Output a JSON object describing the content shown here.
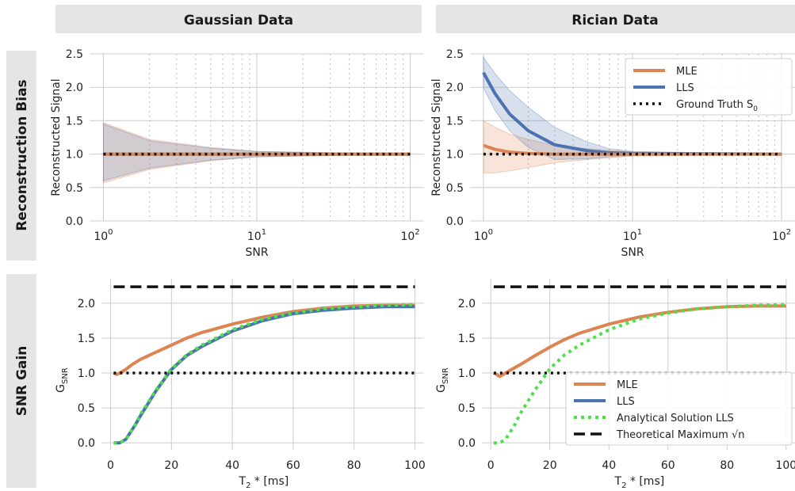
{
  "headers": {
    "columns": [
      "Gaussian Data",
      "Rician Data"
    ],
    "rows": [
      "Reconstruction Bias",
      "SNR Gain"
    ]
  },
  "colors": {
    "mle": "#dd8452",
    "lls": "#4c72b0",
    "analytical": "#4ee04a",
    "truth": "#111111",
    "header_bg": "#e5e5e5",
    "grid": "#cccccc"
  },
  "chart_data": [
    {
      "id": "bias-gaussian",
      "type": "line",
      "xscale": "log",
      "xlim": [
        1,
        100
      ],
      "ylim": [
        0,
        2.5
      ],
      "xticks": [
        "10^0",
        "10^1",
        "10^2"
      ],
      "yticks": [
        "0.0",
        "0.5",
        "1.0",
        "1.5",
        "2.0",
        "2.5"
      ],
      "xlabel": "SNR",
      "ylabel": "Reconstructed Signal",
      "grid": true,
      "series": [
        {
          "name": "MLE",
          "x": [
            1,
            2,
            5,
            10,
            100
          ],
          "y": [
            1.0,
            1.0,
            1.0,
            1.0,
            1.0
          ],
          "band_upper": [
            1.47,
            1.22,
            1.1,
            1.04,
            1.0
          ],
          "band_lower": [
            0.57,
            0.77,
            0.9,
            0.96,
            1.0
          ]
        },
        {
          "name": "LLS",
          "x": [
            1,
            2,
            5,
            10,
            100
          ],
          "y": [
            1.0,
            1.0,
            1.0,
            1.0,
            1.0
          ],
          "band_upper": [
            1.45,
            1.2,
            1.09,
            1.04,
            1.0
          ],
          "band_lower": [
            0.6,
            0.79,
            0.91,
            0.96,
            1.0
          ]
        },
        {
          "name": "Ground Truth S0",
          "x": [
            1,
            100
          ],
          "y": [
            1.0,
            1.0
          ]
        }
      ]
    },
    {
      "id": "bias-rician",
      "type": "line",
      "xscale": "log",
      "xlim": [
        1,
        100
      ],
      "ylim": [
        0,
        2.5
      ],
      "xticks": [
        "10^0",
        "10^1",
        "10^2"
      ],
      "yticks": [
        "0.0",
        "0.5",
        "1.0",
        "1.5",
        "2.0",
        "2.5"
      ],
      "xlabel": "SNR",
      "ylabel": "Reconstructed Signal",
      "grid": true,
      "legend": {
        "position": "upper right",
        "entries": [
          "MLE",
          "LLS",
          "Ground Truth S0"
        ]
      },
      "series": [
        {
          "name": "MLE",
          "x": [
            1,
            1.2,
            1.5,
            2,
            3,
            5,
            10,
            100
          ],
          "y": [
            1.13,
            1.07,
            1.03,
            1.01,
            1.0,
            1.0,
            1.0,
            1.0
          ],
          "band_upper": [
            1.5,
            1.4,
            1.3,
            1.22,
            1.13,
            1.08,
            1.03,
            1.0
          ],
          "band_lower": [
            0.72,
            0.72,
            0.75,
            0.8,
            0.87,
            0.92,
            0.97,
            1.0
          ]
        },
        {
          "name": "LLS",
          "x": [
            1,
            1.2,
            1.5,
            2,
            3,
            5,
            7,
            10,
            100
          ],
          "y": [
            2.22,
            1.9,
            1.6,
            1.35,
            1.14,
            1.05,
            1.02,
            1.01,
            1.0
          ],
          "band_upper": [
            2.45,
            2.2,
            1.95,
            1.7,
            1.4,
            1.18,
            1.08,
            1.04,
            1.0
          ],
          "band_lower": [
            1.99,
            1.65,
            1.35,
            1.1,
            0.92,
            0.93,
            0.96,
            0.98,
            1.0
          ]
        },
        {
          "name": "Ground Truth S0",
          "x": [
            1,
            100
          ],
          "y": [
            1.0,
            1.0
          ]
        }
      ]
    },
    {
      "id": "gain-gaussian",
      "type": "line",
      "xlim": [
        -3,
        103
      ],
      "ylim": [
        -0.1,
        2.35
      ],
      "xticks": [
        "0",
        "20",
        "40",
        "60",
        "80",
        "100"
      ],
      "yticks": [
        "0.0",
        "0.5",
        "1.0",
        "1.5",
        "2.0"
      ],
      "xlabel": "T2* [ms]",
      "ylabel": "GSNR",
      "grid": true,
      "series": [
        {
          "name": "MLE",
          "x": [
            1,
            2,
            3,
            5,
            7,
            10,
            15,
            20,
            25,
            30,
            40,
            50,
            60,
            70,
            80,
            90,
            100
          ],
          "y": [
            1.0,
            0.98,
            1.0,
            1.05,
            1.12,
            1.2,
            1.3,
            1.4,
            1.5,
            1.58,
            1.7,
            1.8,
            1.88,
            1.93,
            1.96,
            1.97,
            1.97
          ]
        },
        {
          "name": "LLS",
          "x": [
            1,
            3,
            5,
            8,
            10,
            15,
            20,
            25,
            30,
            40,
            50,
            60,
            70,
            80,
            90,
            100
          ],
          "y": [
            0.0,
            0.0,
            0.05,
            0.25,
            0.4,
            0.75,
            1.05,
            1.25,
            1.38,
            1.6,
            1.75,
            1.85,
            1.9,
            1.93,
            1.95,
            1.95
          ]
        },
        {
          "name": "Analytical Solution LLS",
          "x": [
            1,
            3,
            5,
            8,
            10,
            15,
            20,
            25,
            30,
            40,
            50,
            60,
            70,
            80,
            90,
            100
          ],
          "y": [
            0.0,
            0.0,
            0.05,
            0.25,
            0.42,
            0.76,
            1.06,
            1.26,
            1.4,
            1.62,
            1.77,
            1.86,
            1.92,
            1.95,
            1.97,
            1.98
          ]
        },
        {
          "name": "Theoretical Maximum √n",
          "x": [
            1,
            100
          ],
          "y": [
            2.236,
            2.236
          ]
        },
        {
          "name": "Reference 1.0",
          "x": [
            1,
            100
          ],
          "y": [
            1.0,
            1.0
          ]
        }
      ]
    },
    {
      "id": "gain-rician",
      "type": "line",
      "xlim": [
        -3,
        103
      ],
      "ylim": [
        -0.1,
        2.35
      ],
      "xticks": [
        "0",
        "20",
        "40",
        "60",
        "80",
        "100"
      ],
      "yticks": [
        "0.0",
        "0.5",
        "1.0",
        "1.5",
        "2.0"
      ],
      "xlabel": "T2* [ms]",
      "ylabel": "GSNR",
      "grid": true,
      "legend": {
        "position": "lower right",
        "entries": [
          "MLE",
          "LLS",
          "Analytical Solution LLS",
          "Theoretical Maximum √n"
        ]
      },
      "series": [
        {
          "name": "MLE",
          "x": [
            1,
            2,
            3,
            5,
            7,
            10,
            15,
            20,
            25,
            30,
            40,
            50,
            60,
            70,
            80,
            90,
            100
          ],
          "y": [
            1.0,
            0.98,
            0.95,
            1.0,
            1.05,
            1.12,
            1.25,
            1.37,
            1.48,
            1.57,
            1.7,
            1.8,
            1.87,
            1.92,
            1.95,
            1.96,
            1.96
          ]
        },
        {
          "name": "Analytical Solution LLS",
          "x": [
            1,
            3,
            5,
            8,
            10,
            15,
            20,
            25,
            30,
            40,
            50,
            60,
            70,
            80,
            90,
            100
          ],
          "y": [
            0.0,
            0.0,
            0.05,
            0.25,
            0.42,
            0.76,
            1.06,
            1.26,
            1.4,
            1.62,
            1.77,
            1.86,
            1.92,
            1.95,
            1.97,
            1.98
          ]
        },
        {
          "name": "Theoretical Maximum √n",
          "x": [
            1,
            100
          ],
          "y": [
            2.236,
            2.236
          ]
        },
        {
          "name": "Reference 1.0",
          "x": [
            1,
            100
          ],
          "y": [
            1.0,
            1.0
          ]
        }
      ]
    }
  ]
}
